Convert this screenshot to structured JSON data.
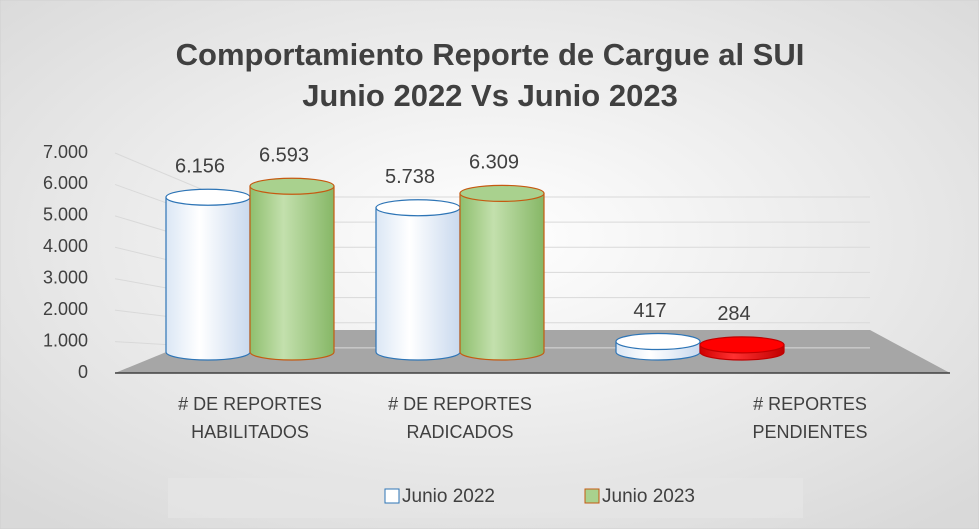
{
  "chart_data": {
    "type": "bar3d",
    "title": "Comportamiento Reporte de Cargue al SUI",
    "subtitle": "Junio 2022 Vs Junio 2023",
    "categories": [
      [
        "# DE REPORTES",
        "HABILITADOS"
      ],
      [
        "# DE REPORTES",
        "RADICADOS"
      ],
      [
        "# REPORTES",
        "PENDIENTES"
      ]
    ],
    "series": [
      {
        "name": "Junio 2022",
        "color": "#ffffff",
        "edge": "#2e75b6",
        "values": [
          6156,
          5738,
          417
        ],
        "value_labels": [
          "6.156",
          "5.738",
          "417"
        ]
      },
      {
        "name": "Junio 2023",
        "color": "#a9d18e",
        "edge": "#c55a11",
        "values": [
          6593,
          6309,
          284
        ],
        "value_labels": [
          "6.593",
          "6.309",
          "284"
        ]
      }
    ],
    "highlight": {
      "series": 1,
      "index": 2,
      "color": "#ff0000"
    },
    "ylim": [
      0,
      7000
    ],
    "yticks": [
      0,
      {
        "value": 1000,
        "label": "1.000"
      },
      {
        "value": 2000,
        "label": "2.000"
      },
      {
        "value": 3000,
        "label": "3.000"
      },
      {
        "value": 4000,
        "label": "4.000"
      },
      {
        "value": 5000,
        "label": "5.000"
      },
      {
        "value": 6000,
        "label": "6.000"
      },
      {
        "value": 7000,
        "label": "7.000"
      }
    ],
    "grid": true,
    "legend": "bottom"
  }
}
